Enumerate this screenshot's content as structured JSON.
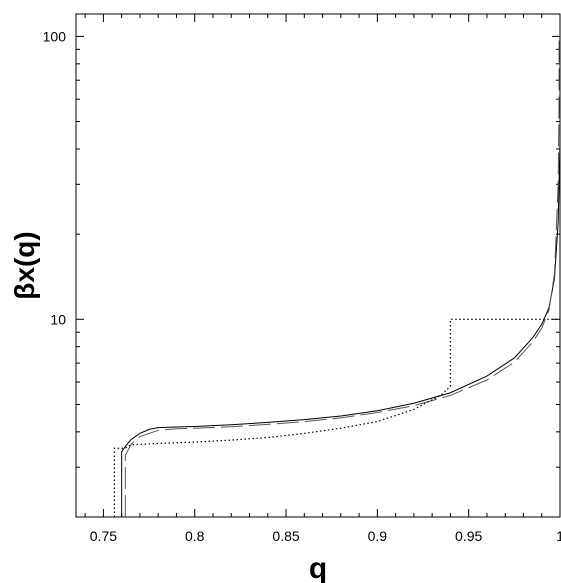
{
  "chart_data": {
    "type": "line",
    "title": "",
    "xlabel": "q",
    "ylabel": "βx(q)",
    "yscale": "log",
    "xlim": [
      0.735,
      1.0
    ],
    "ylim": [
      2.0,
      120
    ],
    "grid": false,
    "x_ticks": [
      0.75,
      0.8,
      0.85,
      0.9,
      0.95,
      1
    ],
    "x_tick_labels": [
      "0.75",
      "0.8",
      "0.85",
      "0.9",
      "0.95",
      "1"
    ],
    "y_ticks": [
      10,
      100
    ],
    "y_tick_labels": [
      "10",
      "100"
    ],
    "series": [
      {
        "style": "solid",
        "color": "#000000",
        "points": [
          [
            0.76,
            2.0
          ],
          [
            0.76,
            3.4
          ],
          [
            0.762,
            3.55
          ],
          [
            0.765,
            3.75
          ],
          [
            0.77,
            3.95
          ],
          [
            0.775,
            4.08
          ],
          [
            0.78,
            4.14
          ],
          [
            0.79,
            4.16
          ],
          [
            0.8,
            4.18
          ],
          [
            0.82,
            4.24
          ],
          [
            0.84,
            4.32
          ],
          [
            0.86,
            4.42
          ],
          [
            0.88,
            4.55
          ],
          [
            0.9,
            4.75
          ],
          [
            0.92,
            5.05
          ],
          [
            0.94,
            5.5
          ],
          [
            0.96,
            6.3
          ],
          [
            0.975,
            7.3
          ],
          [
            0.985,
            8.6
          ],
          [
            0.99,
            9.6
          ],
          [
            0.994,
            11.0
          ],
          [
            0.997,
            14.0
          ],
          [
            0.999,
            22.0
          ],
          [
            1.0,
            42.0
          ]
        ]
      },
      {
        "style": "dashed",
        "color": "#555555",
        "points": [
          [
            0.762,
            2.0
          ],
          [
            0.762,
            3.3
          ],
          [
            0.765,
            3.6
          ],
          [
            0.77,
            3.85
          ],
          [
            0.78,
            4.05
          ],
          [
            0.79,
            4.1
          ],
          [
            0.8,
            4.12
          ],
          [
            0.82,
            4.17
          ],
          [
            0.84,
            4.25
          ],
          [
            0.86,
            4.35
          ],
          [
            0.88,
            4.48
          ],
          [
            0.9,
            4.68
          ],
          [
            0.92,
            4.95
          ],
          [
            0.94,
            5.38
          ],
          [
            0.96,
            6.1
          ],
          [
            0.975,
            7.05
          ],
          [
            0.985,
            8.3
          ],
          [
            0.99,
            9.3
          ],
          [
            0.994,
            10.8
          ],
          [
            0.997,
            14.5
          ],
          [
            0.999,
            30.0
          ],
          [
            0.9995,
            60.0
          ],
          [
            0.9995,
            100.0
          ]
        ]
      },
      {
        "style": "dotted",
        "color": "#000000",
        "points": [
          [
            0.756,
            2.0
          ],
          [
            0.756,
            3.5
          ],
          [
            0.762,
            3.5
          ],
          [
            0.765,
            3.6
          ],
          [
            0.78,
            3.64
          ],
          [
            0.8,
            3.68
          ],
          [
            0.82,
            3.74
          ],
          [
            0.84,
            3.82
          ],
          [
            0.86,
            3.95
          ],
          [
            0.88,
            4.12
          ],
          [
            0.9,
            4.35
          ],
          [
            0.92,
            4.8
          ],
          [
            0.935,
            5.4
          ],
          [
            0.94,
            5.8
          ],
          [
            0.94,
            10.0
          ],
          [
            1.0,
            10.0
          ]
        ]
      }
    ]
  }
}
